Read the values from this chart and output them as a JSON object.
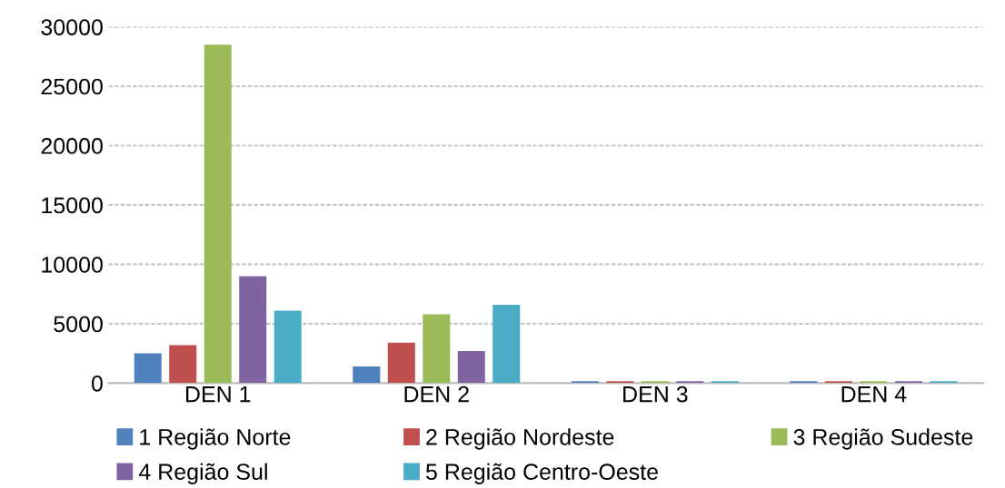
{
  "chart_data": {
    "type": "bar",
    "categories": [
      "DEN 1",
      "DEN 2",
      "DEN 3",
      "DEN 4"
    ],
    "series": [
      {
        "name": "1 Região Norte",
        "color": "#4f81bd",
        "values": [
          2500,
          1400,
          150,
          150
        ]
      },
      {
        "name": "2 Região Nordeste",
        "color": "#c0504d",
        "values": [
          3200,
          3400,
          150,
          150
        ]
      },
      {
        "name": "3 Região Sudeste",
        "color": "#9bbb59",
        "values": [
          28500,
          5800,
          150,
          150
        ]
      },
      {
        "name": "4 Região Sul",
        "color": "#8064a2",
        "values": [
          9000,
          2700,
          150,
          150
        ]
      },
      {
        "name": "5 Região Centro-Oeste",
        "color": "#4bacc6",
        "values": [
          6100,
          6600,
          150,
          150
        ]
      }
    ],
    "ylim": [
      0,
      30000
    ],
    "yticks": [
      0,
      5000,
      10000,
      15000,
      20000,
      25000,
      30000
    ],
    "grid": "y",
    "legend": "bottom"
  }
}
